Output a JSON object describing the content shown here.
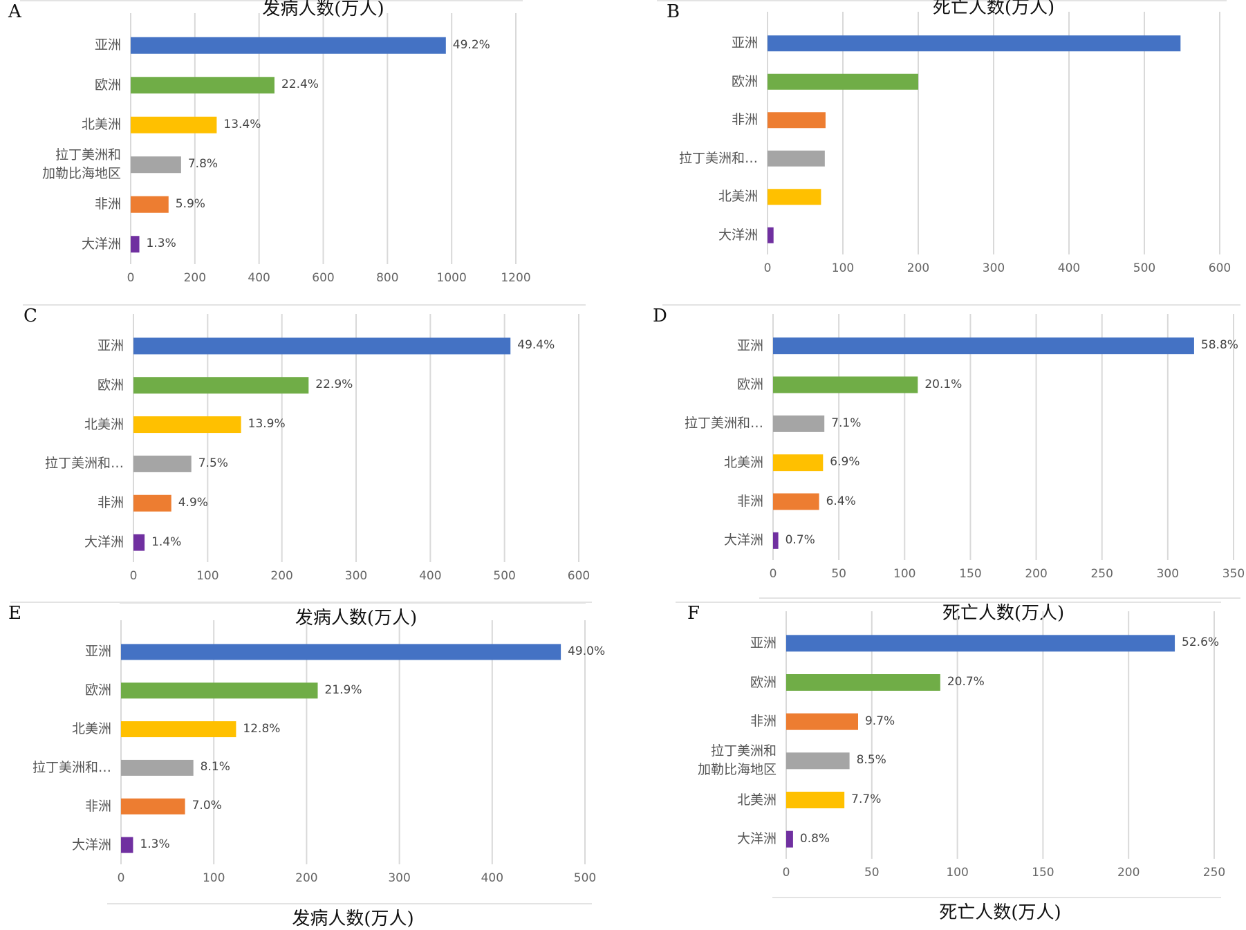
{
  "colors": {
    "asia": "#4472C4",
    "europe": "#70AD47",
    "north_america": "#FFC000",
    "latin_america": "#A5A5A5",
    "africa": "#ED7D31",
    "oceania": "#7030A0",
    "grid": "#d9d9d9"
  },
  "chart_data": [
    {
      "panel": "A",
      "type": "bar",
      "orientation": "horizontal",
      "categories": [
        "亚洲",
        "欧洲",
        "北美洲",
        "拉丁美洲和\n加勒比海地区",
        "非洲",
        "大洋洲"
      ],
      "color_keys": [
        "asia",
        "europe",
        "north_america",
        "latin_america",
        "africa",
        "oceania"
      ],
      "values": [
        982,
        448,
        268,
        157,
        118,
        27
      ],
      "labels": [
        "49.2%",
        "22.4%",
        "13.4%",
        "7.8%",
        "5.9%",
        "1.3%"
      ],
      "xlim": [
        0,
        1200
      ],
      "ticks": [
        "0",
        "200",
        "400",
        "600",
        "800",
        "1000",
        "1200"
      ],
      "xlabel": "发病人数(万人)",
      "grid": true
    },
    {
      "panel": "B",
      "type": "bar",
      "orientation": "horizontal",
      "categories": [
        "亚洲",
        "欧洲",
        "非洲",
        "拉丁美洲和…",
        "北美洲",
        "大洋洲"
      ],
      "color_keys": [
        "asia",
        "europe",
        "africa",
        "latin_america",
        "north_america",
        "oceania"
      ],
      "values": [
        548,
        200,
        77,
        76,
        71,
        8
      ],
      "labels": [
        "",
        "",
        "",
        "",
        "",
        ""
      ],
      "xlim": [
        0,
        600
      ],
      "ticks": [
        "0",
        "100",
        "200",
        "300",
        "400",
        "500",
        "600"
      ],
      "xlabel": "死亡人数(万人)",
      "grid": true
    },
    {
      "panel": "C",
      "type": "bar",
      "orientation": "horizontal",
      "categories": [
        "亚洲",
        "欧洲",
        "北美洲",
        "拉丁美洲和…",
        "非洲",
        "大洋洲"
      ],
      "color_keys": [
        "asia",
        "europe",
        "north_america",
        "latin_america",
        "africa",
        "oceania"
      ],
      "values": [
        508,
        236,
        145,
        78,
        51,
        15
      ],
      "labels": [
        "49.4%",
        "22.9%",
        "13.9%",
        "7.5%",
        "4.9%",
        "1.4%"
      ],
      "xlim": [
        0,
        600
      ],
      "ticks": [
        "0",
        "100",
        "200",
        "300",
        "400",
        "500",
        "600"
      ],
      "xlabel": "发病人数(万人)",
      "grid": true
    },
    {
      "panel": "D",
      "type": "bar",
      "orientation": "horizontal",
      "categories": [
        "亚洲",
        "欧洲",
        "拉丁美洲和…",
        "北美洲",
        "非洲",
        "大洋洲"
      ],
      "color_keys": [
        "asia",
        "europe",
        "latin_america",
        "north_america",
        "africa",
        "oceania"
      ],
      "values": [
        320,
        110,
        39,
        38,
        35,
        4
      ],
      "labels": [
        "58.8%",
        "20.1%",
        "7.1%",
        "6.9%",
        "6.4%",
        "0.7%"
      ],
      "xlim": [
        0,
        350
      ],
      "ticks": [
        "0",
        "50",
        "100",
        "150",
        "200",
        "250",
        "300",
        "350"
      ],
      "xlabel": "死亡人数(万人)",
      "grid": true
    },
    {
      "panel": "E",
      "type": "bar",
      "orientation": "horizontal",
      "categories": [
        "亚洲",
        "欧洲",
        "北美洲",
        "拉丁美洲和…",
        "非洲",
        "大洋洲"
      ],
      "color_keys": [
        "asia",
        "europe",
        "north_america",
        "latin_america",
        "africa",
        "oceania"
      ],
      "values": [
        474,
        212,
        124,
        78,
        69,
        13
      ],
      "labels": [
        "49.0%",
        "21.9%",
        "12.8%",
        "8.1%",
        "7.0%",
        "1.3%"
      ],
      "xlim": [
        0,
        500
      ],
      "ticks": [
        "0",
        "100",
        "200",
        "300",
        "400",
        "500"
      ],
      "xlabel": "发病人数(万人)",
      "grid": true
    },
    {
      "panel": "F",
      "type": "bar",
      "orientation": "horizontal",
      "categories": [
        "亚洲",
        "欧洲",
        "非洲",
        "拉丁美洲和\n加勒比海地区",
        "北美洲",
        "大洋洲"
      ],
      "color_keys": [
        "asia",
        "europe",
        "africa",
        "latin_america",
        "north_america",
        "oceania"
      ],
      "values": [
        227,
        90,
        42,
        37,
        34,
        4
      ],
      "labels": [
        "52.6%",
        "20.7%",
        "9.7%",
        "8.5%",
        "7.7%",
        "0.8%"
      ],
      "xlim": [
        0,
        250
      ],
      "ticks": [
        "0",
        "50",
        "100",
        "150",
        "200",
        "250"
      ],
      "xlabel": "死亡人数(万人)",
      "grid": true
    }
  ]
}
